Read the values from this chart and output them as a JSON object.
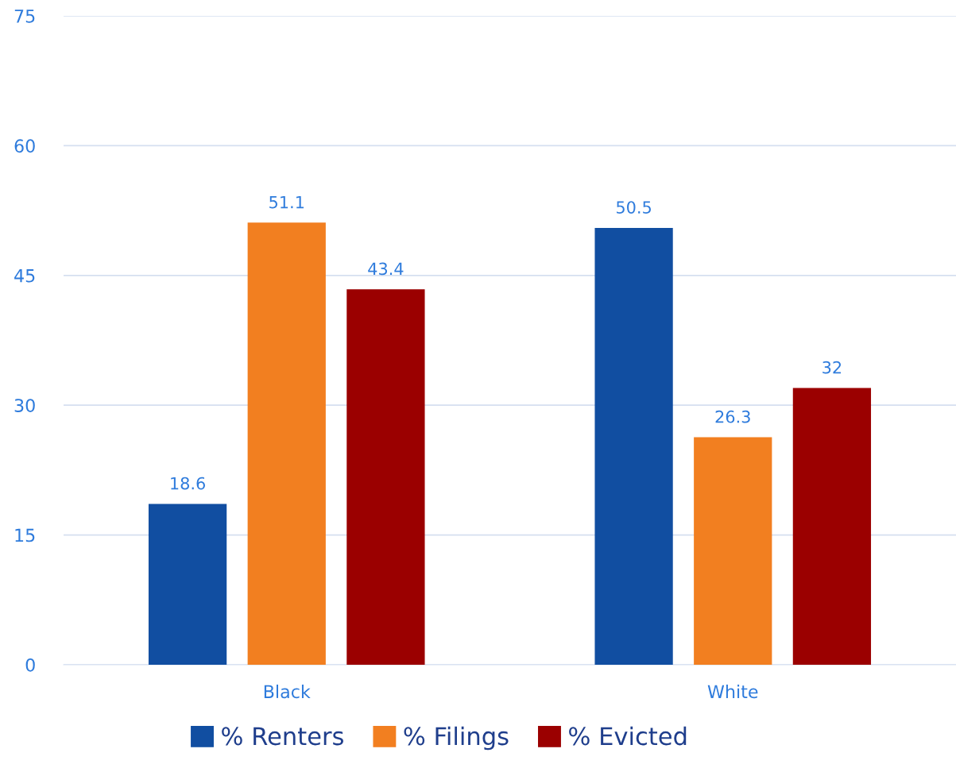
{
  "chart_data": {
    "type": "bar",
    "categories": [
      "Black",
      "White"
    ],
    "series": [
      {
        "name": "% Renters",
        "color": "#114ea1",
        "values": [
          18.6,
          50.5
        ]
      },
      {
        "name": "% Filings",
        "color": "#f27f20",
        "values": [
          51.1,
          26.3
        ]
      },
      {
        "name": "% Evicted",
        "color": "#9b0000",
        "values": [
          43.4,
          32
        ]
      }
    ],
    "ylim": [
      0,
      75
    ],
    "yticks": [
      0,
      15,
      30,
      45,
      60,
      75
    ],
    "grid": "y",
    "data_labels": true,
    "legend": "bottom"
  }
}
